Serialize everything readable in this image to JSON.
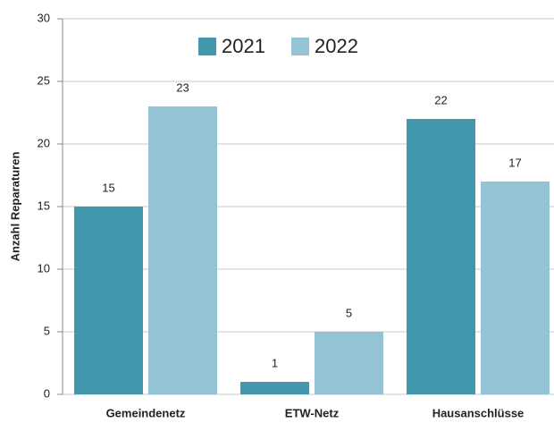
{
  "chart_data": {
    "type": "bar",
    "y_label": "Anzahl Reparaturen",
    "categories": [
      "Gemeindenetz",
      "ETW-Netz",
      "Hausanschlüsse"
    ],
    "series": [
      {
        "name": "2021",
        "color": "#4197ab",
        "values": [
          15,
          1,
          22
        ]
      },
      {
        "name": "2022",
        "color": "#93c3d5",
        "values": [
          23,
          5,
          17
        ]
      }
    ],
    "ylim": [
      0,
      30
    ],
    "yticks": [
      0,
      5,
      10,
      15,
      20,
      25,
      30
    ],
    "grid": true,
    "legend": "top"
  }
}
